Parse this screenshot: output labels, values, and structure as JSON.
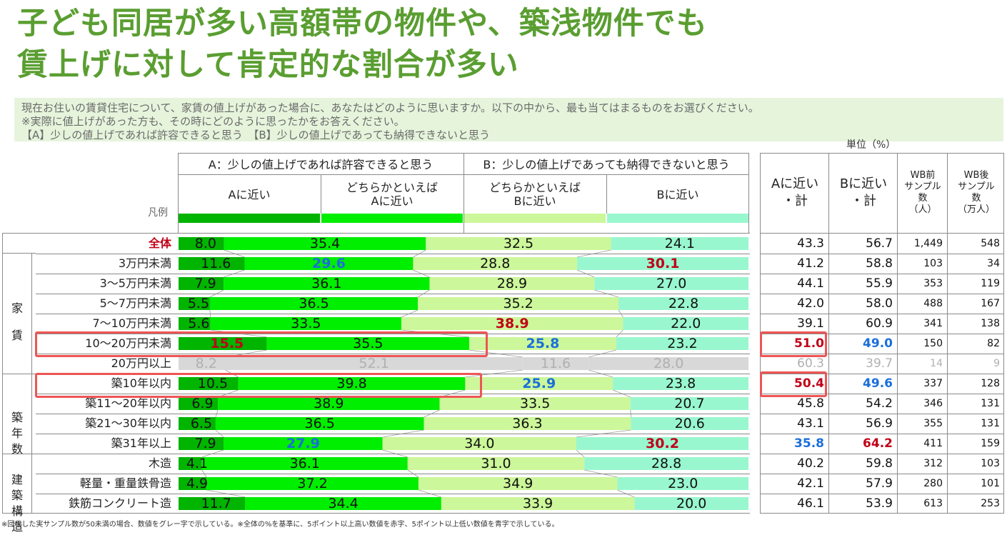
{
  "title_lines": [
    "子ども同居が多い高額帯の物件や、築浅物件でも",
    "賃上げに対して肯定的な割合が多い"
  ],
  "question_lines": [
    "現在お住いの賃貸住宅について、家賃の値上げがあった場合に、あなたはどのように思いますか。以下の中から、最も当てはまるものをお選びください。",
    "※実際に値上げがあった方も、その時にどのように思ったかをお答えください。",
    "【A】少しの値上げであれば許容できると思う　【B】少しの値上げであっても納得できないと思う"
  ],
  "unit_label": "単位（%）",
  "legend_label": "凡例",
  "header": {
    "group_a": "A：少しの値上げであれば許容できると思う",
    "group_b": "B：少しの値上げであっても納得できないと思う",
    "right_cols": [
      "Aに近い\n・計",
      "Bに近い\n・計",
      "WB前\nサンプル\n数\n（人）",
      "WB後\nサンプル\n数\n（万人）"
    ]
  },
  "colors": {
    "a_close": "#00b400",
    "a_somewhat": "#00ee00",
    "b_somewhat": "#ccf79a",
    "b_close": "#99f7cf",
    "grey": "#d8d8d8",
    "high": "#c00018",
    "low": "#1a6edb",
    "title": "#5a9e31"
  },
  "groups": [
    {
      "label": "家賃",
      "rows": [
        1,
        7
      ]
    },
    {
      "label": "築年数",
      "rows": [
        8,
        11
      ]
    },
    {
      "label": "建築構造",
      "rows": [
        12,
        14
      ]
    }
  ],
  "chart_data": {
    "type": "bar",
    "stacked": true,
    "orientation": "horizontal",
    "categories": [
      "全体",
      "3万円未満",
      "3～5万円未満",
      "5～7万円未満",
      "7～10万円未満",
      "10～20万円未満",
      "20万円以上",
      "築10年以内",
      "築11～20年以内",
      "築21～30年以内",
      "築31年以上",
      "木造",
      "軽量・重量鉄骨造",
      "鉄筋コンクリート造"
    ],
    "series": [
      {
        "name": "Aに近い",
        "values": [
          8.0,
          11.6,
          7.9,
          5.5,
          5.6,
          15.5,
          8.2,
          10.5,
          6.9,
          6.5,
          7.9,
          4.1,
          4.9,
          11.7
        ]
      },
      {
        "name": "どちらかといえば\nAに近い",
        "values": [
          35.4,
          29.6,
          36.1,
          36.5,
          33.5,
          35.5,
          52.1,
          39.8,
          38.9,
          36.5,
          27.9,
          36.1,
          37.2,
          34.4
        ]
      },
      {
        "name": "どちらかといえば\nBに近い",
        "values": [
          32.5,
          28.8,
          28.9,
          35.2,
          38.9,
          25.8,
          11.6,
          25.9,
          33.5,
          36.3,
          34.0,
          31.0,
          34.9,
          33.9
        ]
      },
      {
        "name": "Bに近い",
        "values": [
          24.1,
          30.1,
          27.0,
          22.8,
          22.0,
          23.2,
          28.0,
          23.8,
          20.7,
          20.6,
          30.2,
          28.8,
          23.0,
          20.0
        ]
      }
    ],
    "value_labels": [
      [
        "8.0",
        "35.4",
        "32.5",
        "24.1"
      ],
      [
        "11.6",
        "29.6",
        "28.8",
        "30.1"
      ],
      [
        "7.9",
        "36.1",
        "28.9",
        "27.0"
      ],
      [
        "5.5",
        "36.5",
        "35.2",
        "22.8"
      ],
      [
        "5.6",
        "33.5",
        "38.9",
        "22.0"
      ],
      [
        "15.5",
        "35.5",
        "25.8",
        "23.2"
      ],
      [
        "8.2",
        "52.1",
        "11.6",
        "28.0"
      ],
      [
        "10.5",
        "39.8",
        "25.9",
        "23.8"
      ],
      [
        "6.9",
        "38.9",
        "33.5",
        "20.7"
      ],
      [
        "6.5",
        "36.5",
        "36.3",
        "20.6"
      ],
      [
        "7.9",
        "27.9",
        "34.0",
        "30.2"
      ],
      [
        "4.1",
        "36.1",
        "31.0",
        "28.8"
      ],
      [
        "4.9",
        "37.2",
        "34.9",
        "23.0"
      ],
      [
        "11.7",
        "34.4",
        "33.9",
        "20.0"
      ]
    ],
    "emphasis": [
      [
        "",
        "",
        "",
        ""
      ],
      [
        "",
        "low",
        "",
        "high"
      ],
      [
        "",
        "",
        "",
        ""
      ],
      [
        "",
        "",
        "",
        ""
      ],
      [
        "",
        "",
        "high",
        ""
      ],
      [
        "high",
        "",
        "low",
        ""
      ],
      [
        "",
        "",
        "",
        ""
      ],
      [
        "",
        "",
        "low",
        ""
      ],
      [
        "",
        "",
        "",
        ""
      ],
      [
        "",
        "",
        "",
        ""
      ],
      [
        "",
        "low",
        "",
        "high"
      ],
      [
        "",
        "",
        "",
        ""
      ],
      [
        "",
        "",
        "",
        ""
      ],
      [
        "",
        "",
        "",
        ""
      ]
    ],
    "grey_rows": [
      6
    ],
    "highlighted_rows": [
      5,
      7
    ],
    "xlim": [
      0,
      100
    ],
    "table": {
      "a_total": [
        "43.3",
        "41.2",
        "44.1",
        "42.0",
        "39.1",
        "51.0",
        "60.3",
        "50.4",
        "45.8",
        "43.1",
        "35.8",
        "40.2",
        "42.1",
        "46.1"
      ],
      "b_total": [
        "56.7",
        "58.8",
        "55.9",
        "58.0",
        "60.9",
        "49.0",
        "39.7",
        "49.6",
        "54.2",
        "56.9",
        "64.2",
        "59.8",
        "57.9",
        "53.9"
      ],
      "wb_before": [
        "1,449",
        "103",
        "353",
        "488",
        "341",
        "150",
        "14",
        "337",
        "346",
        "355",
        "411",
        "312",
        "280",
        "613"
      ],
      "wb_after": [
        "548",
        "34",
        "119",
        "167",
        "138",
        "82",
        "9",
        "128",
        "131",
        "131",
        "159",
        "103",
        "101",
        "253"
      ],
      "a_emphasis": [
        "",
        "",
        "",
        "",
        "",
        "high",
        "",
        "high",
        "",
        "",
        "low",
        "",
        "",
        ""
      ],
      "b_emphasis": [
        "",
        "",
        "",
        "",
        "",
        "low",
        "",
        "low",
        "",
        "",
        "high",
        "",
        "",
        ""
      ]
    }
  },
  "footnote": "※回収した実サンプル数が50未満の場合、数値をグレー字で示している。※全体の%を基準に、5ポイント以上高い数値を赤字、5ポイント以上低い数値を青字で示している。"
}
